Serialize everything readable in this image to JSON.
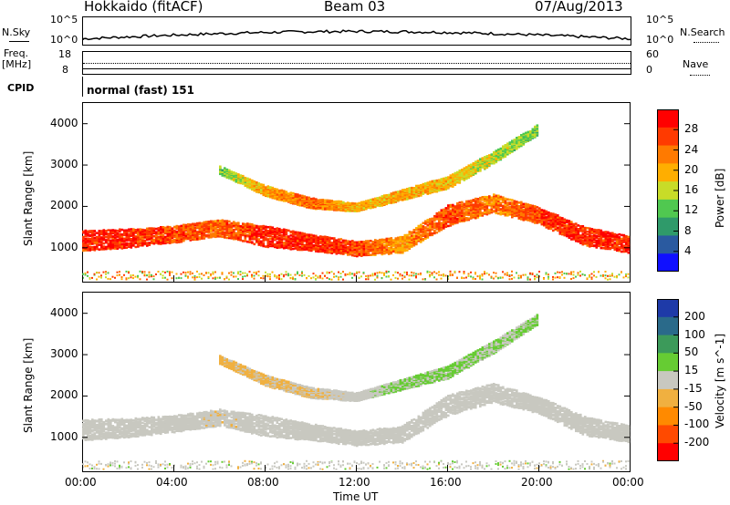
{
  "header": {
    "station": "Hokkaido (fitACF)",
    "beam": "Beam 03",
    "date": "07/Aug/2013"
  },
  "sky_panel": {
    "left_label": "N.Sky",
    "left_top": "10^5",
    "left_bottom": "10^0",
    "right_top": "10^5",
    "right_bottom": "10^0",
    "right_label": "N.Search"
  },
  "freq_panel": {
    "left_label_1": "Freq.",
    "left_label_2": "[MHz]",
    "left_top": "18",
    "left_bottom": "8",
    "right_top": "60",
    "right_bottom": "0",
    "right_label": "Nave"
  },
  "cpid_panel": {
    "label": "CPID",
    "value": "normal (fast) 151"
  },
  "x_axis": {
    "title": "Time UT",
    "ticks": [
      "00:00",
      "04:00",
      "08:00",
      "12:00",
      "16:00",
      "20:00",
      "00:00"
    ]
  },
  "power_colorbar": {
    "title": "Power [dB]",
    "ticks": [
      "28",
      "24",
      "20",
      "16",
      "12",
      "8",
      "4"
    ],
    "colors": [
      "#ff0000",
      "#ff3a00",
      "#ff7a00",
      "#ffae00",
      "#c8dc28",
      "#50c850",
      "#2f9a6a",
      "#2a5aa0",
      "#1010ff"
    ]
  },
  "velocity_colorbar": {
    "title": "Velocity [m s^-1]",
    "ticks": [
      "200",
      "100",
      "50",
      "15",
      "-15",
      "-50",
      "-100",
      "-200"
    ],
    "colors": [
      "#1e3aa8",
      "#2a6a8a",
      "#3c9a5a",
      "#66cc33",
      "#c8c8c0",
      "#f0b040",
      "#ff8a00",
      "#ff4a00",
      "#ff0000"
    ]
  },
  "chart_data": [
    {
      "type": "heatmap",
      "title": "Power",
      "xlabel": "Time UT",
      "ylabel": "Slant Range [km]",
      "x_ticks": [
        "00:00",
        "04:00",
        "08:00",
        "12:00",
        "16:00",
        "20:00",
        "00:00"
      ],
      "y_ticks": [
        1000,
        2000,
        3000,
        4000
      ],
      "ylim": [
        180,
        4500
      ],
      "color_scale": {
        "label": "Power [dB]",
        "range": [
          0,
          30
        ]
      },
      "bands": [
        {
          "name": "main",
          "hours": [
            0,
            2,
            4,
            6,
            8,
            10,
            12,
            14,
            16,
            18,
            20,
            22,
            24
          ],
          "center_km": [
            1200,
            1250,
            1350,
            1500,
            1300,
            1150,
            1000,
            1100,
            1800,
            2100,
            1800,
            1300,
            1100
          ],
          "width_km": [
            500,
            450,
            400,
            400,
            500,
            400,
            350,
            400,
            500,
            450,
            400,
            450,
            400
          ],
          "power_db": [
            28,
            28,
            26,
            24,
            28,
            28,
            26,
            20,
            26,
            22,
            26,
            28,
            28
          ]
        },
        {
          "name": "upper",
          "hours": [
            6,
            8,
            10,
            12,
            14,
            16,
            18,
            20
          ],
          "center_km": [
            2900,
            2400,
            2100,
            2000,
            2300,
            2600,
            3200,
            3900
          ],
          "width_km": [
            200,
            250,
            250,
            200,
            250,
            300,
            300,
            250
          ],
          "power_db": [
            12,
            20,
            24,
            18,
            20,
            18,
            14,
            12
          ]
        }
      ]
    },
    {
      "type": "heatmap",
      "title": "Velocity",
      "xlabel": "Time UT",
      "ylabel": "Slant Range [km]",
      "x_ticks": [
        "00:00",
        "04:00",
        "08:00",
        "12:00",
        "16:00",
        "20:00",
        "00:00"
      ],
      "y_ticks": [
        1000,
        2000,
        3000,
        4000
      ],
      "ylim": [
        180,
        4500
      ],
      "color_scale": {
        "label": "Velocity [m s^-1]",
        "range": [
          -200,
          200
        ]
      },
      "bands": [
        {
          "name": "main",
          "hours": [
            0,
            2,
            4,
            6,
            8,
            10,
            12,
            14,
            16,
            18,
            20,
            22,
            24
          ],
          "center_km": [
            1200,
            1250,
            1350,
            1500,
            1300,
            1150,
            1000,
            1100,
            1800,
            2100,
            1800,
            1300,
            1100
          ],
          "width_km": [
            500,
            450,
            400,
            400,
            500,
            400,
            350,
            400,
            500,
            450,
            400,
            450,
            400
          ],
          "velocity": [
            0,
            0,
            0,
            -10,
            0,
            0,
            0,
            0,
            0,
            0,
            0,
            0,
            0
          ]
        },
        {
          "name": "upper",
          "hours": [
            6,
            8,
            10,
            12,
            14,
            16,
            18,
            20
          ],
          "center_km": [
            2900,
            2400,
            2100,
            2000,
            2300,
            2600,
            3200,
            3900
          ],
          "width_km": [
            200,
            250,
            250,
            200,
            250,
            300,
            300,
            250
          ],
          "velocity": [
            -40,
            -30,
            -20,
            0,
            30,
            30,
            20,
            30
          ]
        }
      ]
    }
  ]
}
